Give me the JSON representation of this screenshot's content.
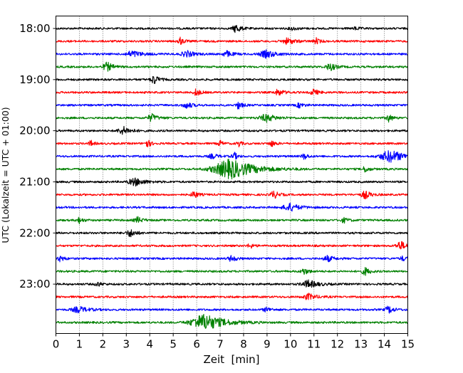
{
  "chart_data": {
    "type": "line",
    "subtype": "helicorder-seismogram",
    "title": "",
    "xlabel": "Zeit  [min]",
    "ylabel": "UTC (Lokalzeit = UTC + 01:00)",
    "xlim": [
      0,
      15
    ],
    "xticks": [
      "0",
      "1",
      "2",
      "3",
      "4",
      "5",
      "6",
      "7",
      "8",
      "9",
      "10",
      "11",
      "12",
      "13",
      "14",
      "15"
    ],
    "yticks": [
      "18:00",
      "19:00",
      "20:00",
      "21:00",
      "22:00",
      "23:00"
    ],
    "grid": "vertical dotted at each minute",
    "color_cycle": [
      "#000000",
      "#ff0000",
      "#0000ff",
      "#008000"
    ],
    "traces": [
      {
        "start": "18:00",
        "events": [
          [
            7.7,
            6,
            0.5
          ],
          [
            10.1,
            2,
            0.5
          ],
          [
            12.8,
            2,
            0.4
          ]
        ]
      },
      {
        "start": "18:15",
        "events": [
          [
            5.3,
            5,
            0.4
          ],
          [
            9.9,
            4,
            0.8
          ],
          [
            11.1,
            4,
            0.4
          ]
        ]
      },
      {
        "start": "18:30",
        "events": [
          [
            3.3,
            4,
            1.0
          ],
          [
            5.6,
            4,
            0.8
          ],
          [
            7.3,
            4,
            0.6
          ],
          [
            9.0,
            5,
            1.0
          ]
        ]
      },
      {
        "start": "18:45",
        "events": [
          [
            2.2,
            6,
            0.6
          ],
          [
            11.7,
            5,
            0.6
          ]
        ]
      },
      {
        "start": "19:00",
        "events": [
          [
            4.2,
            6,
            0.5
          ]
        ]
      },
      {
        "start": "19:15",
        "events": [
          [
            6.0,
            5,
            0.4
          ],
          [
            9.5,
            4,
            0.6
          ],
          [
            11.0,
            4,
            0.5
          ]
        ]
      },
      {
        "start": "19:30",
        "events": [
          [
            5.6,
            4,
            0.6
          ],
          [
            7.8,
            5,
            0.4
          ],
          [
            10.4,
            3,
            0.5
          ]
        ]
      },
      {
        "start": "19:45",
        "events": [
          [
            4.1,
            5,
            0.6
          ],
          [
            9.0,
            5,
            1.0
          ],
          [
            14.2,
            5,
            0.4
          ]
        ]
      },
      {
        "start": "20:00",
        "events": [
          [
            2.9,
            5,
            0.8
          ]
        ]
      },
      {
        "start": "20:15",
        "events": [
          [
            1.5,
            4,
            0.3
          ],
          [
            3.9,
            5,
            0.4
          ],
          [
            7.0,
            4,
            0.3
          ],
          [
            7.8,
            4,
            0.3
          ],
          [
            9.2,
            4,
            0.4
          ]
        ]
      },
      {
        "start": "20:30",
        "events": [
          [
            6.7,
            3,
            0.6
          ],
          [
            7.6,
            6,
            0.3
          ],
          [
            10.6,
            4,
            0.4
          ],
          [
            14.3,
            8,
            1.5
          ]
        ]
      },
      {
        "start": "20:45",
        "events": [
          [
            7.5,
            13,
            2.5
          ],
          [
            13.2,
            4,
            0.4
          ]
        ]
      },
      {
        "start": "21:00",
        "events": [
          [
            3.4,
            5,
            1.0
          ]
        ]
      },
      {
        "start": "21:15",
        "events": [
          [
            5.9,
            5,
            0.4
          ],
          [
            9.3,
            5,
            0.5
          ],
          [
            13.2,
            5,
            0.6
          ]
        ]
      },
      {
        "start": "21:30",
        "events": [
          [
            10.0,
            5,
            1.0
          ]
        ]
      },
      {
        "start": "21:45",
        "events": [
          [
            1.0,
            4,
            0.4
          ],
          [
            3.5,
            4,
            0.5
          ],
          [
            12.3,
            3,
            0.5
          ]
        ]
      },
      {
        "start": "22:00",
        "events": [
          [
            3.2,
            5,
            0.6
          ]
        ]
      },
      {
        "start": "22:15",
        "events": [
          [
            8.3,
            3,
            0.4
          ],
          [
            14.7,
            6,
            0.6
          ]
        ]
      },
      {
        "start": "22:30",
        "events": [
          [
            0.2,
            4,
            0.4
          ],
          [
            7.5,
            4,
            0.5
          ],
          [
            11.6,
            4,
            0.6
          ],
          [
            14.8,
            3,
            0.4
          ]
        ]
      },
      {
        "start": "22:45",
        "events": [
          [
            10.6,
            4,
            0.5
          ],
          [
            13.2,
            5,
            0.5
          ]
        ]
      },
      {
        "start": "23:00",
        "events": [
          [
            1.8,
            3,
            0.4
          ],
          [
            10.8,
            5,
            1.0
          ]
        ]
      },
      {
        "start": "23:15",
        "events": [
          [
            10.8,
            4,
            0.8
          ]
        ]
      },
      {
        "start": "23:30",
        "events": [
          [
            1.0,
            4,
            1.0
          ],
          [
            9.0,
            3,
            0.5
          ],
          [
            14.2,
            5,
            0.5
          ]
        ]
      },
      {
        "start": "23:45",
        "events": [
          [
            6.4,
            11,
            2.0
          ]
        ]
      }
    ]
  }
}
